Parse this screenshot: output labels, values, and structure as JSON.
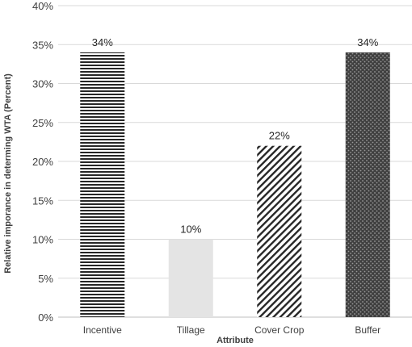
{
  "chart_data": {
    "type": "bar",
    "xlabel": "Attribute",
    "ylabel": "Relative imporance in determing WTA (Percent)",
    "ylim": [
      0,
      40
    ],
    "y_ticks": [
      0,
      5,
      10,
      15,
      20,
      25,
      30,
      35,
      40
    ],
    "y_tick_labels": [
      "0%",
      "5%",
      "10%",
      "15%",
      "20%",
      "25%",
      "30%",
      "35%",
      "40%"
    ],
    "categories": [
      "Incentive",
      "Tillage",
      "Cover Crop",
      "Buffer"
    ],
    "values": [
      34,
      10,
      22,
      34
    ],
    "data_labels": [
      "34%",
      "10%",
      "22%",
      "34%"
    ],
    "bar_fills": [
      "horizontal-stripes",
      "solid-light-gray",
      "diagonal-stripes",
      "dotted-dark"
    ],
    "colors": {
      "stripe": "#262626",
      "light_fill": "#e4e4e4",
      "dark_fill": "#404040",
      "dot": "#9a9a9a",
      "grid": "#d9d9d9"
    },
    "grid": true
  }
}
